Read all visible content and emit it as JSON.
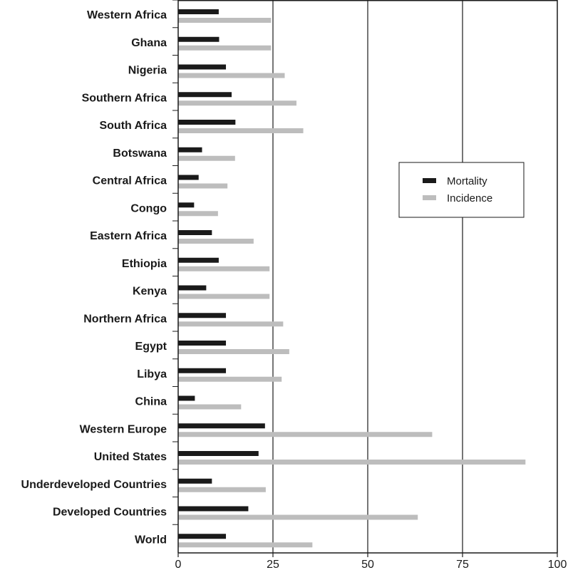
{
  "chart_data": {
    "type": "bar",
    "orientation": "horizontal",
    "categories": [
      "Western Africa",
      "Ghana",
      "Nigeria",
      "Southern Africa",
      "South Africa",
      "Botswana",
      "Central Africa",
      "Congo",
      "Eastern Africa",
      "Ethiopia",
      "Kenya",
      "Northern Africa",
      "Egypt",
      "Libya",
      "China",
      "Western Europe",
      "United States",
      "Underdeveloped Countries",
      "Developed Countries",
      "World"
    ],
    "series": [
      {
        "name": "Mortality",
        "color": "#1a1a1a",
        "values": [
          10.7,
          10.8,
          12.6,
          14.1,
          15.1,
          6.3,
          5.4,
          4.2,
          8.9,
          10.7,
          7.4,
          12.6,
          12.6,
          12.6,
          4.4,
          22.9,
          21.2,
          8.9,
          18.5,
          12.6
        ]
      },
      {
        "name": "Incidence",
        "color": "#bdbdbd",
        "values": [
          24.5,
          24.5,
          28.1,
          31.2,
          33.0,
          15.0,
          13.0,
          10.5,
          19.9,
          24.1,
          24.1,
          27.7,
          29.3,
          27.3,
          16.6,
          67.0,
          91.6,
          23.1,
          63.2,
          35.4
        ]
      }
    ],
    "xlim": [
      0,
      100
    ],
    "xticks": [
      0,
      25,
      50,
      75,
      100
    ],
    "grid": "vertical",
    "legend_position": "right",
    "title": "",
    "xlabel": "",
    "ylabel": ""
  }
}
